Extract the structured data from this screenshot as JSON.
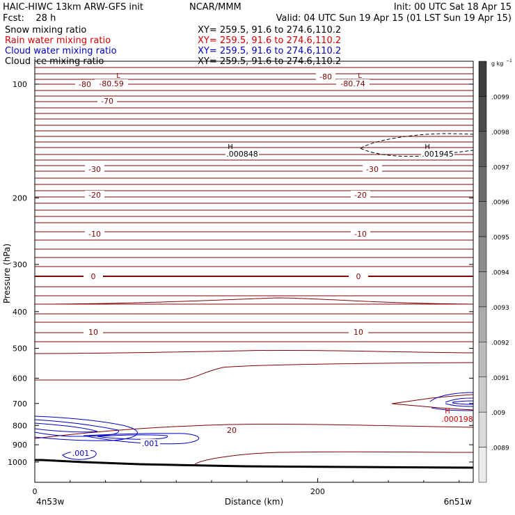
{
  "header": {
    "line1_left": "HAIC-HIWC 13km ARW-GFS init",
    "line1_center": "NCAR/MMM",
    "line1_right": "Init: 00 UTC Sat 18 Apr 15",
    "line2_left": "Fcst:    28 h",
    "line2_right": "Valid: 04 UTC Sun 19 Apr 15 (01 LST Sun 19 Apr 15)"
  },
  "fields": [
    {
      "label": "Snow mixing ratio",
      "xy": "XY= 259.5, 91.6 to 274.6,110.2",
      "color": "#000000"
    },
    {
      "label": "Rain water mixing ratio",
      "xy": "XY= 259.5, 91.6 to 274.6,110.2",
      "color": "#d00000"
    },
    {
      "label": "Cloud water mixing ratio",
      "xy": "XY= 259.5, 91.6 to 274.6,110.2",
      "color": "#0000c8"
    },
    {
      "label": "Cloud ice mixing ratio",
      "xy": "XY= 259.5, 91.6 to 274.6,110.2",
      "color": "#000000"
    }
  ],
  "colors": {
    "temperature": "#800000",
    "cloud_water": "#0000c8",
    "rain": "#d00000",
    "ice": "#000000"
  },
  "chart_data": {
    "type": "contour",
    "xlabel": "Distance (km)",
    "ylabel": "Pressure (hPa)",
    "xlim": [
      0,
      310
    ],
    "ylim": [
      1050,
      50
    ],
    "y_scale": "log",
    "x_ticks": [
      0,
      200
    ],
    "x_tick_labels": [
      "0",
      "200"
    ],
    "y_ticks": [
      100,
      200,
      300,
      400,
      500,
      600,
      700,
      800,
      900,
      1000
    ],
    "y_tick_labels": [
      "100",
      "200",
      "300",
      "400",
      "500",
      "600",
      "700",
      "800",
      "900",
      "1000"
    ],
    "x_endpoint_labels": {
      "left": "4n53w",
      "right": "6n51w"
    },
    "temperature_contour_labels": [
      "-80",
      "-70",
      "-30",
      "-20",
      "-10",
      "0",
      "10",
      "20"
    ],
    "extrema": [
      {
        "type": "L",
        "value": "-80.59",
        "color": "#800000"
      },
      {
        "type": "L",
        "value": "-80.74",
        "color": "#800000"
      },
      {
        "type": "H",
        "value": ".000848",
        "color": "#000000"
      },
      {
        "type": "H",
        "value": ".001945",
        "color": "#000000"
      },
      {
        "type": "H",
        "value": ".000198",
        "color": "#d00000"
      }
    ],
    "cloud_water_labels": [
      ".001",
      ".001"
    ],
    "colorbar": {
      "unit": "g kg",
      "unit_sup": "−1",
      "labels": [
        ".0099",
        ".0098",
        ".0097",
        ".0096",
        ".0095",
        ".0094",
        ".0093",
        ".0092",
        ".0091",
        ".009",
        ".0089"
      ]
    }
  }
}
